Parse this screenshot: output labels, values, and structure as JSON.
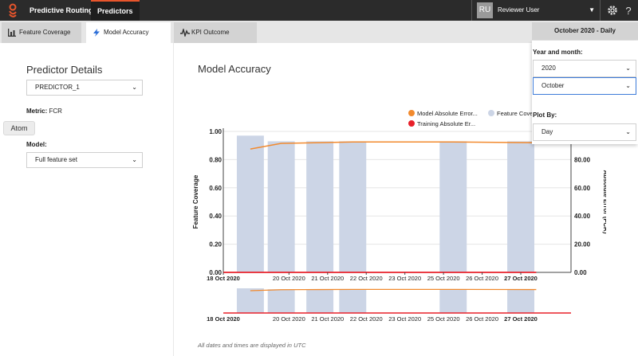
{
  "nav": {
    "app_label": "Predictive Routing",
    "predictors_label": "Predictors"
  },
  "user": {
    "initials": "RU",
    "name": "Reviewer User"
  },
  "tabs": [
    {
      "label": "Feature Coverage"
    },
    {
      "label": "Model Accuracy"
    },
    {
      "label": "KPI Outcome"
    }
  ],
  "date_button": {
    "label": "October 2020 - Daily"
  },
  "left": {
    "title": "Predictor Details",
    "predictor_value": "PREDICTOR_1",
    "metric_label": "Metric:",
    "metric_value": "FCR",
    "model_label": "Model:",
    "model_value": "Full feature set",
    "atom_label": "Atom"
  },
  "main": {
    "title": "Model Accuracy",
    "footnote": "All dates and times are displayed in UTC"
  },
  "date_panel": {
    "year_label": "Year and month:",
    "year_value": "2020",
    "month_value": "October",
    "plot_label": "Plot By:",
    "plot_value": "Day"
  },
  "colors": {
    "accent": "#e8552c",
    "bar": "#ccd5e6",
    "model_line": "#f28a2e",
    "training_line": "#e8202a",
    "focus": "#3d7bd9"
  },
  "chart_data": {
    "type": "bar",
    "legend": [
      "Model Absolute Error...",
      "Feature Cove",
      "Training Absolute Er..."
    ],
    "ylabel": "Feature Coverage",
    "y2label": "Absolute Error (FCR)",
    "ylim": [
      0,
      1
    ],
    "y2lim": [
      0,
      100
    ],
    "yticks": [
      "0.00",
      "0.20",
      "0.40",
      "0.60",
      "0.80",
      "1.00"
    ],
    "y2ticks": [
      "0.00",
      "20.00",
      "40.00",
      "60.00",
      "80.00"
    ],
    "xlim": [
      0,
      9
    ],
    "x_ticks": [
      {
        "x": 0,
        "label": "18 Oct 2020",
        "bold": true
      },
      {
        "x": 1.7,
        "label": "20 Oct 2020",
        "bold": false
      },
      {
        "x": 2.7,
        "label": "21 Oct 2020",
        "bold": false
      },
      {
        "x": 3.7,
        "label": "22 Oct 2020",
        "bold": false
      },
      {
        "x": 4.7,
        "label": "23 Oct 2020",
        "bold": false
      },
      {
        "x": 5.7,
        "label": "25 Oct 2020",
        "bold": false
      },
      {
        "x": 6.7,
        "label": "26 Oct 2020",
        "bold": false
      },
      {
        "x": 7.7,
        "label": "27 Oct 2020",
        "bold": true
      }
    ],
    "bars": [
      {
        "x0": 0.35,
        "x1": 1.05,
        "value": 0.97
      },
      {
        "x0": 1.15,
        "x1": 1.85,
        "value": 0.93
      },
      {
        "x0": 2.15,
        "x1": 2.85,
        "value": 0.93
      },
      {
        "x0": 3.0,
        "x1": 3.7,
        "value": 0.93
      },
      {
        "x0": 5.6,
        "x1": 6.3,
        "value": 0.93
      },
      {
        "x0": 7.35,
        "x1": 8.05,
        "value": 0.93
      }
    ],
    "model_error": [
      {
        "x": 0.7,
        "y": 87.5
      },
      {
        "x": 1.5,
        "y": 91.5
      },
      {
        "x": 2.5,
        "y": 92
      },
      {
        "x": 3.35,
        "y": 92.5
      },
      {
        "x": 5.95,
        "y": 92.5
      },
      {
        "x": 8.1,
        "y": 92
      }
    ],
    "training_error": [
      {
        "x": 0,
        "y": 0
      },
      {
        "x": 8.1,
        "y": 0
      }
    ]
  }
}
